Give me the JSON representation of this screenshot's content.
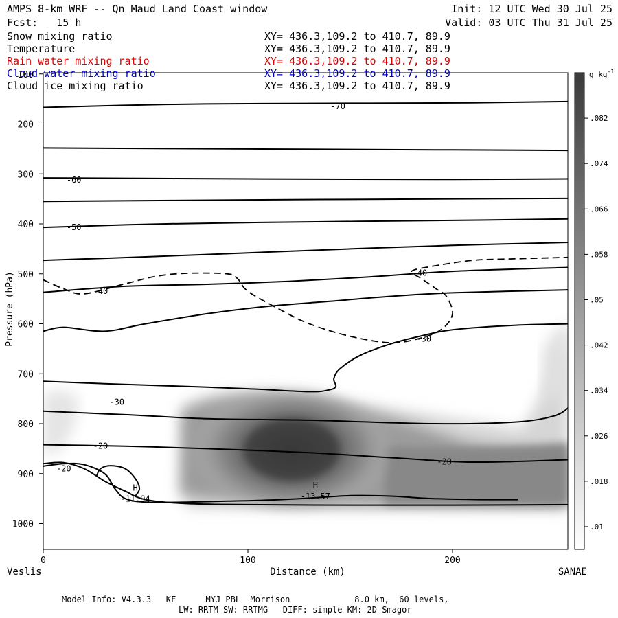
{
  "header": {
    "title": "AMPS 8-km WRF -- Qn Maud Land Coast window",
    "init": "Init: 12 UTC Wed 30 Jul 25",
    "fcst": "Fcst:   15 h",
    "valid": "Valid: 03 UTC Thu 31 Jul 25"
  },
  "variables": [
    {
      "name": "Snow mixing ratio",
      "xy": "XY= 436.3,109.2 to 410.7, 89.9",
      "color": "#000000"
    },
    {
      "name": "Temperature",
      "xy": "XY= 436.3,109.2 to 410.7, 89.9",
      "color": "#000000"
    },
    {
      "name": "Rain water mixing ratio",
      "xy": "XY= 436.3,109.2 to 410.7, 89.9",
      "color": "#dd0000"
    },
    {
      "name": "Cloud water mixing ratio",
      "xy": "XY= 436.3,109.2 to 410.7, 89.9",
      "color": "#0000cc"
    },
    {
      "name": "Cloud ice mixing ratio",
      "xy": "XY= 436.3,109.2 to 410.7, 89.9",
      "color": "#000000"
    }
  ],
  "chart_data": {
    "type": "heatmap",
    "xlabel": "Distance (km)",
    "ylabel": "Pressure (hPa)",
    "xlim": [
      0,
      258
    ],
    "ylim": [
      1050,
      100
    ],
    "x_ticks": [
      0,
      100,
      200
    ],
    "y_ticks": [
      100,
      200,
      300,
      400,
      500,
      600,
      700,
      800,
      900,
      1000
    ],
    "x_endpoints": {
      "left": "Veslis",
      "right": "SANAE"
    },
    "colorbar": {
      "unit": "g kg",
      "unit_exp": "-1",
      "ticks": [
        0.01,
        0.018,
        0.026,
        0.034,
        0.042,
        0.05,
        0.058,
        0.066,
        0.074,
        0.082
      ],
      "tick_labels": [
        ".01",
        ".018",
        ".026",
        ".034",
        ".042",
        ".05",
        ".058",
        ".066",
        ".074",
        ".082"
      ],
      "range": [
        0.006,
        0.09
      ]
    },
    "snow_maximum": {
      "x": 125,
      "p": 855,
      "value": 0.09
    },
    "isotherms": [
      {
        "label": "-70",
        "label_at": [
          144,
          165
        ],
        "points": [
          [
            0,
            167
          ],
          [
            60,
            161
          ],
          [
            120,
            159
          ],
          [
            200,
            158
          ],
          [
            258,
            155
          ]
        ]
      },
      {
        "label": "",
        "points": [
          [
            0,
            248
          ],
          [
            100,
            250
          ],
          [
            200,
            252
          ],
          [
            258,
            253
          ]
        ]
      },
      {
        "label": "-60",
        "label_at": [
          15,
          312
        ],
        "points": [
          [
            0,
            308
          ],
          [
            100,
            310
          ],
          [
            200,
            311
          ],
          [
            258,
            310
          ]
        ]
      },
      {
        "label": "",
        "points": [
          [
            0,
            355
          ],
          [
            100,
            352
          ],
          [
            200,
            350
          ],
          [
            258,
            349
          ]
        ]
      },
      {
        "label": "-50",
        "label_at": [
          15,
          407
        ],
        "points": [
          [
            0,
            407
          ],
          [
            60,
            400
          ],
          [
            130,
            396
          ],
          [
            200,
            393
          ],
          [
            258,
            390
          ]
        ]
      },
      {
        "label": "",
        "points": [
          [
            0,
            473
          ],
          [
            50,
            466
          ],
          [
            100,
            458
          ],
          [
            150,
            450
          ],
          [
            200,
            443
          ],
          [
            258,
            437
          ]
        ]
      },
      {
        "label": "-40",
        "label_at": [
          28,
          535
        ],
        "points": [
          [
            0,
            537
          ],
          [
            40,
            525
          ],
          [
            80,
            521
          ],
          [
            120,
            515
          ],
          [
            160,
            506
          ],
          [
            200,
            495
          ],
          [
            258,
            487
          ]
        ]
      },
      {
        "label": "-40",
        "label_at": [
          184,
          498
        ],
        "points": []
      },
      {
        "label": "",
        "points": [
          [
            0,
            615
          ],
          [
            10,
            607
          ],
          [
            30,
            615
          ],
          [
            50,
            600
          ],
          [
            80,
            580
          ],
          [
            110,
            565
          ],
          [
            140,
            555
          ],
          [
            170,
            545
          ],
          [
            200,
            538
          ],
          [
            258,
            532
          ]
        ]
      },
      {
        "label": "-30",
        "label_at": [
          186,
          630
        ],
        "points": [
          [
            258,
            600
          ],
          [
            230,
            603
          ],
          [
            200,
            612
          ],
          [
            185,
            624
          ],
          [
            170,
            640
          ],
          [
            155,
            663
          ],
          [
            145,
            690
          ],
          [
            142,
            710
          ],
          [
            143,
            725
          ],
          [
            140,
            732
          ],
          [
            130,
            736
          ],
          [
            100,
            730
          ],
          [
            60,
            724
          ],
          [
            30,
            720
          ],
          [
            0,
            715
          ]
        ]
      },
      {
        "label": "-30",
        "label_at": [
          36,
          757
        ],
        "points": []
      },
      {
        "label": "",
        "points": [
          [
            0,
            775
          ],
          [
            40,
            782
          ],
          [
            80,
            790
          ],
          [
            130,
            793
          ],
          [
            190,
            800
          ],
          [
            230,
            797
          ],
          [
            250,
            784
          ],
          [
            258,
            763
          ]
        ]
      },
      {
        "label": "-20",
        "label_at": [
          28,
          845
        ],
        "points": [
          [
            0,
            842
          ],
          [
            40,
            845
          ],
          [
            80,
            850
          ],
          [
            130,
            858
          ],
          [
            170,
            868
          ],
          [
            210,
            877
          ],
          [
            258,
            872
          ]
        ]
      },
      {
        "label": "-20",
        "label_at": [
          196,
          876
        ],
        "points": []
      },
      {
        "label": "-20",
        "label_at": [
          10,
          890
        ],
        "points": [
          [
            0,
            885
          ],
          [
            10,
            880
          ],
          [
            20,
            882
          ],
          [
            30,
            900
          ],
          [
            35,
            930
          ],
          [
            40,
            950
          ],
          [
            50,
            957
          ],
          [
            70,
            957
          ],
          [
            90,
            955
          ],
          [
            110,
            953
          ],
          [
            130,
            949
          ],
          [
            150,
            944
          ],
          [
            170,
            945
          ],
          [
            190,
            950
          ],
          [
            215,
            952
          ],
          [
            232,
            952
          ]
        ]
      },
      {
        "label": "",
        "points": [
          [
            26,
            905
          ],
          [
            28,
            890
          ],
          [
            33,
            884
          ],
          [
            40,
            890
          ],
          [
            45,
            910
          ],
          [
            47,
            930
          ],
          [
            45,
            945
          ]
        ]
      },
      {
        "label": "",
        "points": [
          [
            0,
            880
          ],
          [
            10,
            878
          ],
          [
            20,
            890
          ],
          [
            30,
            915
          ],
          [
            40,
            935
          ],
          [
            50,
            952
          ],
          [
            70,
            960
          ],
          [
            100,
            962
          ],
          [
            150,
            963
          ],
          [
            200,
            963
          ],
          [
            258,
            962
          ]
        ]
      }
    ],
    "temp_minima": [
      {
        "mark": "H",
        "x": 45,
        "p": 945,
        "label": "-11.94"
      },
      {
        "mark": "H",
        "x": 133,
        "p": 940,
        "label": "-13.57"
      }
    ],
    "dashed_contours": [
      {
        "points": [
          [
            0,
            512
          ],
          [
            10,
            530
          ],
          [
            20,
            540
          ],
          [
            40,
            520
          ],
          [
            55,
            505
          ],
          [
            70,
            499
          ],
          [
            90,
            500
          ],
          [
            95,
            510
          ],
          [
            100,
            535
          ],
          [
            115,
            570
          ],
          [
            130,
            600
          ],
          [
            150,
            625
          ],
          [
            170,
            638
          ],
          [
            185,
            628
          ],
          [
            195,
            610
          ],
          [
            200,
            580
          ],
          [
            197,
            545
          ],
          [
            192,
            530
          ],
          [
            185,
            510
          ],
          [
            180,
            495
          ],
          [
            190,
            485
          ],
          [
            210,
            473
          ],
          [
            230,
            470
          ],
          [
            258,
            467
          ]
        ]
      }
    ]
  },
  "footer": {
    "line1": "Model Info: V4.3.3   KF      MYJ PBL  Morrison             8.0 km,  60 levels,",
    "line2": "LW: RRTM SW: RRTMG   DIFF: simple KM: 2D Smagor"
  }
}
